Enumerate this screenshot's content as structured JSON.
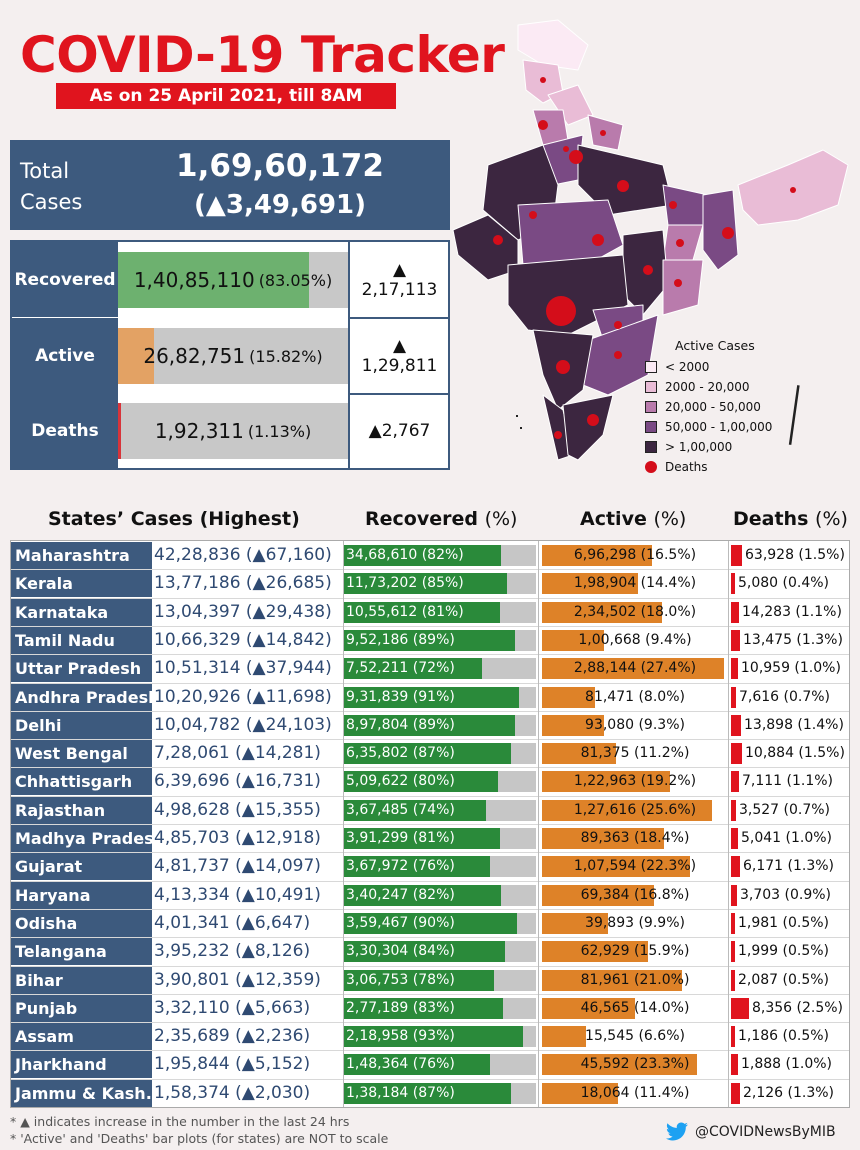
{
  "header": {
    "title": "COVID-19 Tracker",
    "subtitle": "As on 25 April 2021, till 8AM"
  },
  "total": {
    "label": "Total Cases",
    "value": "1,69,60,172",
    "delta": "(▲3,49,691)"
  },
  "summary": [
    {
      "label": "Recovered",
      "value": "1,40,85,110",
      "pct_text": "(83.05%)",
      "share": 83.05,
      "delta_arrow": "▲",
      "delta": "2,17,113",
      "color": "#6db16f"
    },
    {
      "label": "Active",
      "value": "26,82,751",
      "pct_text": "(15.82%)",
      "share": 15.82,
      "delta_arrow": "▲",
      "delta": "1,29,811",
      "color": "#e3a264"
    },
    {
      "label": "Deaths",
      "value": "1,92,311",
      "pct_text": "(1.13%)",
      "share": 1.13,
      "delta_arrow": "",
      "delta": "▲2,767",
      "color": "#d8343a"
    }
  ],
  "legend": {
    "title": "Active Cases",
    "items": [
      {
        "label": "< 2000",
        "color": "#fbeaf4"
      },
      {
        "label": "2000 - 20,000",
        "color": "#e9bcd6"
      },
      {
        "label": "20,000 - 50,000",
        "color": "#b97bac"
      },
      {
        "label": "50,000 - 1,00,000",
        "color": "#7a4a84"
      },
      {
        "label": "> 1,00,000",
        "color": "#3c2640"
      }
    ],
    "deaths_label": "Deaths",
    "deaths_color": "#d40d1a"
  },
  "chart_data": {
    "type": "table",
    "title": "States’ Cases (Highest)",
    "columns": {
      "recovered": "Recovered",
      "active": "Active",
      "deaths": "Deaths",
      "pct": "(%)"
    },
    "series": [
      {
        "name": "Recovered",
        "color": "#2a8a3a"
      },
      {
        "name": "Active",
        "color": "#de8228"
      },
      {
        "name": "Deaths",
        "color": "#e0141e"
      }
    ],
    "rows": [
      {
        "state": "Maharashtra",
        "total": "42,28,836 (▲67,160)",
        "rec": "34,68,610 (82%)",
        "rec_pct": 82,
        "act": "6,96,298 (16.5%)",
        "act_pct": 16.5,
        "dth": "63,928 (1.5%)",
        "dth_pct": 1.5
      },
      {
        "state": "Kerala",
        "total": "13,77,186 (▲26,685)",
        "rec": "11,73,202 (85%)",
        "rec_pct": 85,
        "act": "1,98,904 (14.4%)",
        "act_pct": 14.4,
        "dth": "5,080 (0.4%)",
        "dth_pct": 0.4
      },
      {
        "state": "Karnataka",
        "total": "13,04,397 (▲29,438)",
        "rec": "10,55,612 (81%)",
        "rec_pct": 81,
        "act": "2,34,502 (18.0%)",
        "act_pct": 18.0,
        "dth": "14,283 (1.1%)",
        "dth_pct": 1.1
      },
      {
        "state": "Tamil Nadu",
        "total": "10,66,329 (▲14,842)",
        "rec": "9,52,186 (89%)",
        "rec_pct": 89,
        "act": "1,00,668 (9.4%)",
        "act_pct": 9.4,
        "dth": "13,475 (1.3%)",
        "dth_pct": 1.3
      },
      {
        "state": "Uttar Pradesh",
        "total": "10,51,314 (▲37,944)",
        "rec": "7,52,211 (72%)",
        "rec_pct": 72,
        "act": "2,88,144 (27.4%)",
        "act_pct": 27.4,
        "dth": "10,959 (1.0%)",
        "dth_pct": 1.0
      },
      {
        "state": "Andhra Pradesh",
        "total": "10,20,926 (▲11,698)",
        "rec": "9,31,839 (91%)",
        "rec_pct": 91,
        "act": "81,471 (8.0%)",
        "act_pct": 8.0,
        "dth": "7,616 (0.7%)",
        "dth_pct": 0.7
      },
      {
        "state": "Delhi",
        "total": "10,04,782 (▲24,103)",
        "rec": "8,97,804 (89%)",
        "rec_pct": 89,
        "act": "93,080 (9.3%)",
        "act_pct": 9.3,
        "dth": "13,898 (1.4%)",
        "dth_pct": 1.4
      },
      {
        "state": "West Bengal",
        "total": "7,28,061 (▲14,281)",
        "rec": "6,35,802 (87%)",
        "rec_pct": 87,
        "act": "81,375 (11.2%)",
        "act_pct": 11.2,
        "dth": "10,884 (1.5%)",
        "dth_pct": 1.5
      },
      {
        "state": "Chhattisgarh",
        "total": "6,39,696 (▲16,731)",
        "rec": "5,09,622 (80%)",
        "rec_pct": 80,
        "act": "1,22,963 (19.2%)",
        "act_pct": 19.2,
        "dth": "7,111 (1.1%)",
        "dth_pct": 1.1
      },
      {
        "state": "Rajasthan",
        "total": "4,98,628 (▲15,355)",
        "rec": "3,67,485 (74%)",
        "rec_pct": 74,
        "act": "1,27,616 (25.6%)",
        "act_pct": 25.6,
        "dth": "3,527 (0.7%)",
        "dth_pct": 0.7
      },
      {
        "state": "Madhya Pradesh",
        "total": "4,85,703 (▲12,918)",
        "rec": "3,91,299 (81%)",
        "rec_pct": 81,
        "act": "89,363 (18.4%)",
        "act_pct": 18.4,
        "dth": "5,041 (1.0%)",
        "dth_pct": 1.0
      },
      {
        "state": "Gujarat",
        "total": "4,81,737 (▲14,097)",
        "rec": "3,67,972 (76%)",
        "rec_pct": 76,
        "act": "1,07,594 (22.3%)",
        "act_pct": 22.3,
        "dth": "6,171 (1.3%)",
        "dth_pct": 1.3
      },
      {
        "state": "Haryana",
        "total": "4,13,334 (▲10,491)",
        "rec": "3,40,247 (82%)",
        "rec_pct": 82,
        "act": "69,384 (16.8%)",
        "act_pct": 16.8,
        "dth": "3,703 (0.9%)",
        "dth_pct": 0.9
      },
      {
        "state": "Odisha",
        "total": "4,01,341 (▲6,647)",
        "rec": "3,59,467 (90%)",
        "rec_pct": 90,
        "act": "39,893 (9.9%)",
        "act_pct": 9.9,
        "dth": "1,981 (0.5%)",
        "dth_pct": 0.5
      },
      {
        "state": "Telangana",
        "total": "3,95,232 (▲8,126)",
        "rec": "3,30,304 (84%)",
        "rec_pct": 84,
        "act": "62,929 (15.9%)",
        "act_pct": 15.9,
        "dth": "1,999 (0.5%)",
        "dth_pct": 0.5
      },
      {
        "state": "Bihar",
        "total": "3,90,801 (▲12,359)",
        "rec": "3,06,753 (78%)",
        "rec_pct": 78,
        "act": "81,961 (21.0%)",
        "act_pct": 21.0,
        "dth": "2,087 (0.5%)",
        "dth_pct": 0.5
      },
      {
        "state": "Punjab",
        "total": "3,32,110 (▲5,663)",
        "rec": "2,77,189 (83%)",
        "rec_pct": 83,
        "act": "46,565 (14.0%)",
        "act_pct": 14.0,
        "dth": "8,356 (2.5%)",
        "dth_pct": 2.5
      },
      {
        "state": "Assam",
        "total": "2,35,689 (▲2,236)",
        "rec": "2,18,958 (93%)",
        "rec_pct": 93,
        "act": "15,545 (6.6%)",
        "act_pct": 6.6,
        "dth": "1,186 (0.5%)",
        "dth_pct": 0.5
      },
      {
        "state": "Jharkhand",
        "total": "1,95,844 (▲5,152)",
        "rec": "1,48,364 (76%)",
        "rec_pct": 76,
        "act": "45,592 (23.3%)",
        "act_pct": 23.3,
        "dth": "1,888 (1.0%)",
        "dth_pct": 1.0
      },
      {
        "state": "Jammu & Kash..",
        "total": "1,58,374 (▲2,030)",
        "rec": "1,38,184 (87%)",
        "rec_pct": 87,
        "act": "18,064 (11.4%)",
        "act_pct": 11.4,
        "dth": "2,126 (1.3%)",
        "dth_pct": 1.3
      }
    ]
  },
  "footnotes": [
    "* ▲ indicates increase in the number in the last 24 hrs",
    "* 'Active' and 'Deaths' bar plots (for states) are NOT to scale"
  ],
  "handle": "@COVIDNewsByMIB"
}
